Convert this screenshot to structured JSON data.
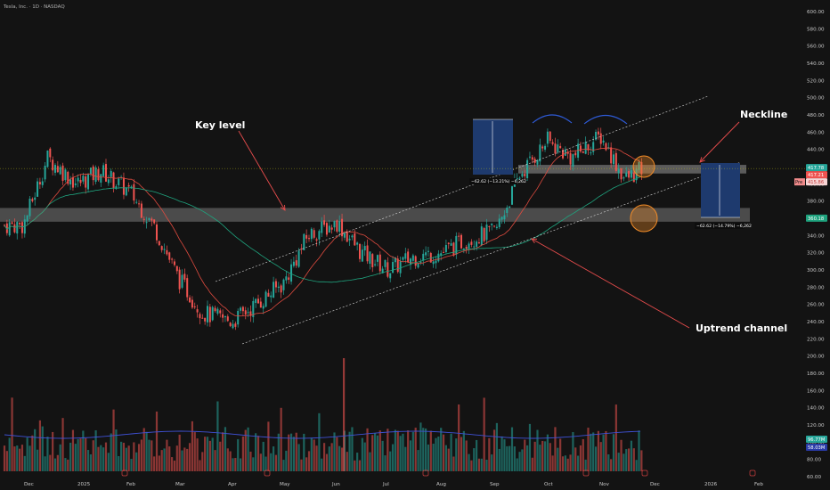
{
  "header": {
    "title": "Tesla, Inc. · 1D · NASDAQ"
  },
  "colors": {
    "background": "#131313",
    "up": "#26a69a",
    "down": "#ef5350",
    "ma_fast": "#e04b3f",
    "ma_slow": "#1fa37e",
    "volume_ma": "#3f51d6",
    "zone": "#b4b4b4",
    "measure_box": "#1e3a6e",
    "arrow": "#e74c4c",
    "circle": "#f28c28"
  },
  "annotations": {
    "key_level": "Key level",
    "neckline": "Neckline",
    "uptrend_channel": "Uptrend channel"
  },
  "measures": {
    "top_left": "−62.62 (−13.21%) −6,262",
    "right": "−62.62 (−14.79%) −6,262"
  },
  "price_tags": {
    "top": "417.78",
    "mid": "417.21",
    "pre_label": "Pre",
    "pre_value": "415.86",
    "bottom": "360.18",
    "vol_top": "96.77M",
    "vol_bottom": "58.03M"
  },
  "chart_data": {
    "type": "line",
    "title": "Tesla, Inc. · 1D · NASDAQ",
    "xlabel": "",
    "ylabel": "",
    "x": [
      "2024-12-01",
      "2024-12-15",
      "2025-01-01",
      "2025-01-15",
      "2025-02-01",
      "2025-02-15",
      "2025-03-01",
      "2025-03-15",
      "2025-04-01",
      "2025-04-15",
      "2025-05-01",
      "2025-05-15",
      "2025-06-01",
      "2025-06-15",
      "2025-07-01",
      "2025-07-15",
      "2025-08-01",
      "2025-08-15",
      "2025-09-01",
      "2025-09-15",
      "2025-10-01",
      "2025-10-15",
      "2025-11-01",
      "2025-11-15",
      "2025-11-26"
    ],
    "series": [
      {
        "values": [
          352,
          430,
          400,
          415,
          390,
          350,
          290,
          250,
          240,
          260,
          285,
          340,
          355,
          320,
          300,
          315,
          320,
          335,
          345,
          410,
          450,
          430,
          455,
          405,
          417.78
        ]
      }
    ],
    "ylim": [
      60,
      610
    ],
    "y_ticks": [
      "600.00",
      "580.00",
      "560.00",
      "540.00",
      "520.00",
      "500.00",
      "480.00",
      "460.00",
      "440.00",
      "420.00",
      "400.00",
      "380.00",
      "360.00",
      "340.00",
      "320.00",
      "300.00",
      "280.00",
      "260.00",
      "240.00",
      "220.00",
      "200.00",
      "180.00",
      "160.00",
      "140.00",
      "120.00",
      "100.00",
      "80.00",
      "60.00"
    ],
    "x_ticks": [
      "Dec",
      "2025",
      "Feb",
      "Mar",
      "Apr",
      "May",
      "Jun",
      "Jul",
      "Aug",
      "Sep",
      "Oct",
      "Nov",
      "Dec",
      "2026",
      "Feb"
    ],
    "volume_levels": [
      "96.77M",
      "58.03M"
    ],
    "grid": false
  }
}
